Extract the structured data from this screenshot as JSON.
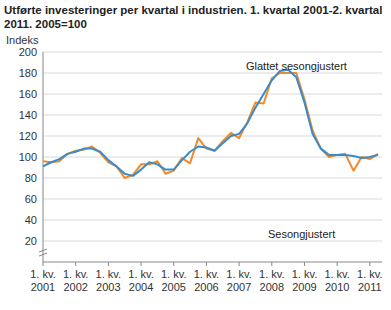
{
  "chart_data": {
    "type": "line",
    "title": "Utførte investeringer per kvartal i industrien. 1. kvartal 2001-2. kvartal 2011. 2005=100",
    "y_label": "Indeks",
    "categories": [
      "1. kv. 2001",
      null,
      null,
      null,
      "1. kv. 2002",
      null,
      null,
      null,
      "1. kv. 2003",
      null,
      null,
      null,
      "1. kv. 2004",
      null,
      null,
      null,
      "1. kv. 2005",
      null,
      null,
      null,
      "1. kv. 2006",
      null,
      null,
      null,
      "1. kv. 2007",
      null,
      null,
      null,
      "1. kv. 2008",
      null,
      null,
      null,
      "1. kv. 2009",
      null,
      null,
      null,
      "1. kv. 2010",
      null,
      null,
      null,
      "1. kv. 2011",
      null
    ],
    "series": [
      {
        "name": "Glattet sesongjustert",
        "color": "#3a8bc9",
        "values": [
          91,
          95,
          98,
          103,
          105,
          108,
          108,
          105,
          97,
          91,
          84,
          82,
          88,
          95,
          93,
          88,
          88,
          97,
          105,
          110,
          109,
          106,
          113,
          120,
          122,
          132,
          147,
          160,
          173,
          182,
          183,
          176,
          152,
          122,
          108,
          102,
          102,
          102,
          101,
          99,
          100,
          102
        ]
      },
      {
        "name": "Sesongjustert",
        "color": "#f0892a",
        "values": [
          96,
          95,
          96,
          103,
          106,
          107,
          110,
          104,
          95,
          91,
          80,
          83,
          93,
          93,
          96,
          84,
          87,
          99,
          94,
          118,
          108,
          106,
          115,
          123,
          118,
          133,
          152,
          151,
          175,
          180,
          180,
          180,
          155,
          125,
          108,
          100,
          102,
          103,
          87,
          100,
          98,
          103
        ]
      }
    ],
    "ylim": [
      0,
      200
    ],
    "yticks": [
      20,
      40,
      60,
      80,
      100,
      120,
      140,
      160,
      180,
      200
    ],
    "grid": true
  }
}
